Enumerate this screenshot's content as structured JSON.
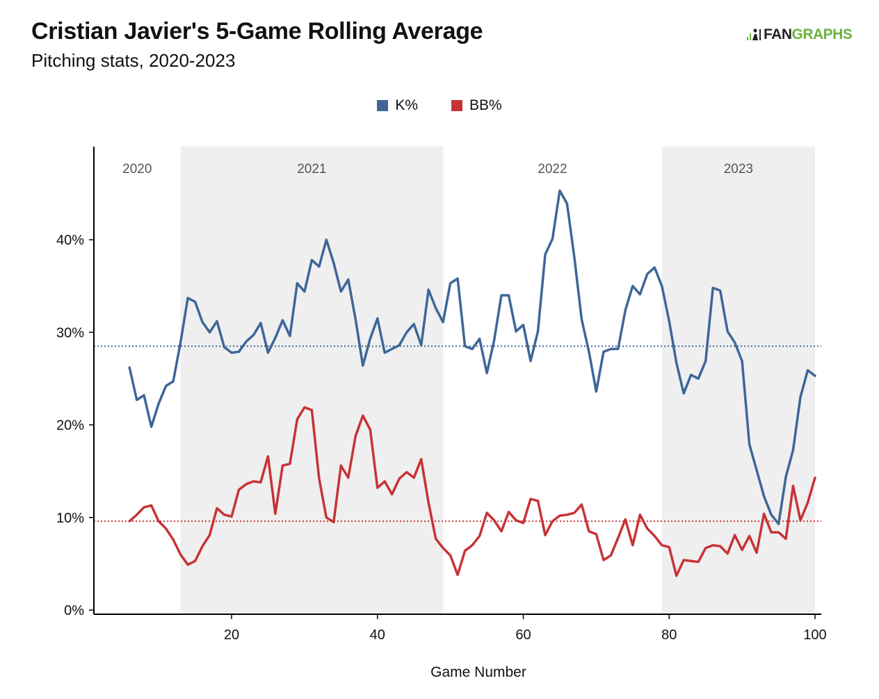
{
  "header": {
    "title": "Cristian Javier's 5-Game Rolling Average",
    "subtitle": "Pitching stats, 2020-2023",
    "logo_left": "FAN",
    "logo_right": "GRAPHS"
  },
  "colors": {
    "k": "#3e6699",
    "bb": "#c73336",
    "shade": "#efefef"
  },
  "chart_data": {
    "type": "line",
    "xlabel": "Game Number",
    "ylabel": "",
    "xlim": [
      1,
      101
    ],
    "ylim": [
      0,
      50
    ],
    "xticks": [
      20,
      40,
      60,
      80,
      100
    ],
    "yticks": [
      0,
      10,
      20,
      30,
      40
    ],
    "ytick_labels": [
      "0%",
      "10%",
      "20%",
      "30%",
      "40%"
    ],
    "grid": false,
    "legend_position": "top-center",
    "seasons": [
      {
        "label": "2020",
        "start": 1,
        "end": 13,
        "shaded": false
      },
      {
        "label": "2021",
        "start": 13,
        "end": 49,
        "shaded": true
      },
      {
        "label": "2022",
        "start": 49,
        "end": 79,
        "shaded": false
      },
      {
        "label": "2023",
        "start": 79,
        "end": 100,
        "shaded": true
      }
    ],
    "x": [
      6,
      7,
      8,
      9,
      10,
      11,
      12,
      13,
      14,
      15,
      16,
      17,
      18,
      19,
      20,
      21,
      22,
      23,
      24,
      25,
      26,
      27,
      28,
      29,
      30,
      31,
      32,
      33,
      34,
      35,
      36,
      37,
      38,
      39,
      40,
      41,
      42,
      43,
      44,
      45,
      46,
      47,
      48,
      49,
      50,
      51,
      52,
      53,
      54,
      55,
      56,
      57,
      58,
      59,
      60,
      61,
      62,
      63,
      64,
      65,
      66,
      67,
      68,
      69,
      70,
      71,
      72,
      73,
      74,
      75,
      76,
      77,
      78,
      79,
      80,
      81,
      82,
      83,
      84,
      85,
      86,
      87,
      88,
      89,
      90,
      91,
      92,
      93,
      94,
      95,
      96,
      97,
      98,
      99,
      100
    ],
    "series": [
      {
        "name": "K%",
        "reference_line": 28.5,
        "values": [
          26.2,
          22.7,
          23.2,
          19.8,
          22.3,
          24.2,
          24.7,
          28.9,
          33.7,
          33.3,
          31.1,
          30.0,
          31.2,
          28.4,
          27.8,
          27.9,
          29.0,
          29.7,
          31.0,
          27.8,
          29.4,
          31.3,
          29.6,
          35.3,
          34.4,
          37.8,
          37.1,
          40.0,
          37.5,
          34.4,
          35.7,
          31.4,
          26.4,
          29.3,
          31.5,
          27.8,
          28.2,
          28.6,
          30.0,
          30.9,
          28.6,
          34.6,
          32.6,
          31.1,
          35.3,
          35.8,
          28.5,
          28.2,
          29.3,
          25.6,
          29.1,
          34.0,
          34.0,
          30.1,
          30.8,
          26.9,
          30.1,
          38.4,
          40.1,
          45.3,
          43.9,
          38.1,
          31.4,
          27.9,
          23.6,
          27.9,
          28.2,
          28.2,
          32.4,
          35.0,
          34.1,
          36.3,
          37.0,
          35.0,
          31.2,
          26.7,
          23.4,
          25.4,
          25.0,
          26.9,
          34.8,
          34.5,
          30.1,
          28.9,
          26.9,
          17.9,
          15.1,
          12.3,
          10.3,
          9.3,
          14.4,
          17.3,
          23.0,
          25.9,
          25.3
        ]
      },
      {
        "name": "BB%",
        "reference_line": 9.6,
        "values": [
          9.6,
          10.3,
          11.1,
          11.3,
          9.6,
          8.8,
          7.6,
          6.0,
          4.9,
          5.3,
          6.9,
          8.1,
          11.0,
          10.3,
          10.1,
          13.0,
          13.6,
          13.9,
          13.8,
          16.6,
          10.4,
          15.6,
          15.8,
          20.6,
          21.9,
          21.6,
          14.2,
          10.0,
          9.5,
          15.6,
          14.3,
          18.8,
          21.0,
          19.5,
          13.2,
          13.9,
          12.5,
          14.2,
          14.9,
          14.3,
          16.3,
          11.6,
          7.7,
          6.7,
          5.9,
          3.8,
          6.4,
          7.0,
          8.0,
          10.5,
          9.7,
          8.5,
          10.6,
          9.7,
          9.4,
          12.0,
          11.8,
          8.1,
          9.6,
          10.2,
          10.3,
          10.5,
          11.4,
          8.5,
          8.2,
          5.4,
          5.9,
          7.8,
          9.8,
          7.0,
          10.3,
          8.8,
          8.0,
          7.0,
          6.8,
          3.7,
          5.4,
          5.3,
          5.2,
          6.7,
          7.0,
          6.9,
          6.1,
          8.1,
          6.5,
          8.0,
          6.2,
          10.4,
          8.4,
          8.4,
          7.7,
          13.4,
          9.7,
          11.6,
          14.3
        ]
      }
    ]
  }
}
